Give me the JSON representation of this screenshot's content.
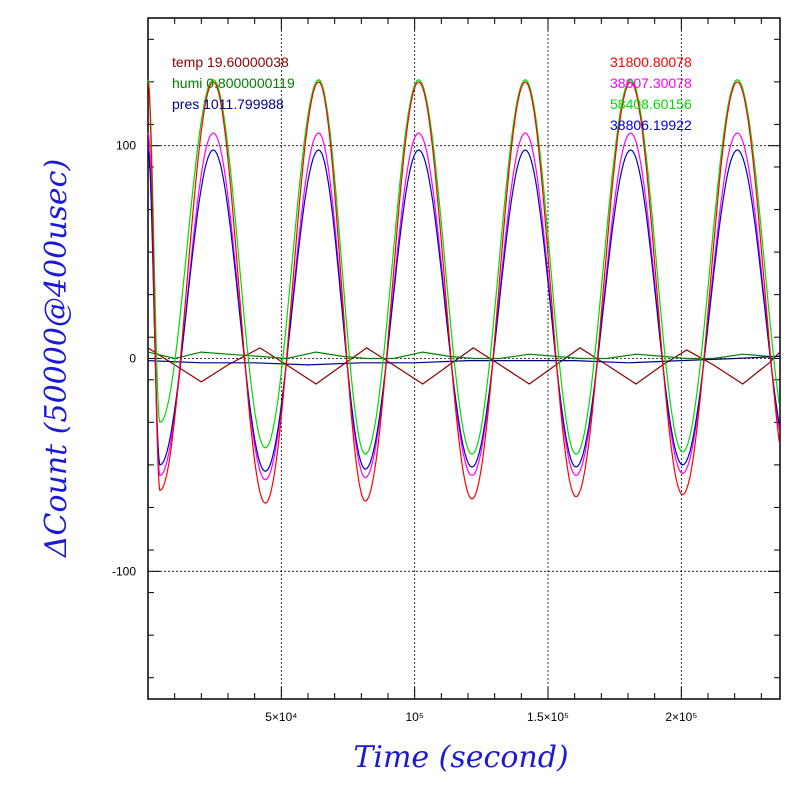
{
  "chart_data": {
    "type": "line",
    "xlabel": "Time (second)",
    "ylabel": "ΔCount (50000@400usec)",
    "xlim": [
      0,
      237000
    ],
    "ylim": [
      -160,
      160
    ],
    "x_ticks": [
      {
        "value": 50000,
        "label": "5×10⁴"
      },
      {
        "value": 100000,
        "label": "10⁵"
      },
      {
        "value": 150000,
        "label": "1.5×10⁵"
      },
      {
        "value": 200000,
        "label": "2×10⁵"
      }
    ],
    "y_ticks": [
      {
        "value": -100,
        "label": "-100"
      },
      {
        "value": 0,
        "label": "0"
      },
      {
        "value": 100,
        "label": "100"
      }
    ],
    "grid": true,
    "legend_left": [
      {
        "label": "temp 19.60000038",
        "color": "#8b0000"
      },
      {
        "label": "humi 0.8000000119",
        "color": "#008000"
      },
      {
        "label": "pres 1011.799988",
        "color": "#00008b"
      }
    ],
    "legend_right": [
      {
        "label": "31800.80078",
        "color": "#ff0000"
      },
      {
        "label": "38607.30078",
        "color": "#ff00ff"
      },
      {
        "label": "58408.60156",
        "color": "#00dd00"
      },
      {
        "label": "38806.19922",
        "color": "#0000cd"
      }
    ],
    "series": [
      {
        "name": "31800.80078",
        "color": "#ff0000",
        "peak_x": [
          24500,
          64000,
          101500,
          141500,
          181000,
          221000
        ],
        "peak_y": [
          130,
          130,
          130,
          130,
          130,
          130
        ],
        "trough_x": [
          4500,
          44000,
          81500,
          121500,
          160500,
          200500
        ],
        "trough_y": [
          -62,
          -68,
          -67,
          -66,
          -65,
          -64
        ]
      },
      {
        "name": "38607.30078",
        "color": "#ff00ff",
        "peak_x": [
          24500,
          64000,
          101500,
          141500,
          181000,
          221000
        ],
        "peak_y": [
          106,
          106,
          106,
          106,
          106,
          106
        ],
        "trough_x": [
          4500,
          44000,
          81500,
          121500,
          160500,
          200500
        ],
        "trough_y": [
          -55,
          -57,
          -56,
          -55,
          -55,
          -54
        ]
      },
      {
        "name": "58408.60156",
        "color": "#00dd00",
        "peak_x": [
          24500,
          64000,
          101500,
          141500,
          181000,
          221000
        ],
        "peak_y": [
          131,
          131,
          131,
          131,
          131,
          131
        ],
        "trough_x": [
          4500,
          44000,
          81500,
          121500,
          160500,
          200500
        ],
        "trough_y": [
          -30,
          -42,
          -45,
          -45,
          -45,
          -44
        ]
      },
      {
        "name": "38806.19922",
        "color": "#0000cd",
        "peak_x": [
          24500,
          64000,
          101500,
          141500,
          181000,
          221000
        ],
        "peak_y": [
          98,
          98,
          98,
          98,
          98,
          98
        ],
        "trough_x": [
          4500,
          44000,
          81500,
          121500,
          160500,
          200500
        ],
        "trough_y": [
          -50,
          -53,
          -52,
          -51,
          -51,
          -50
        ]
      },
      {
        "name": "temp",
        "color": "#8b0000",
        "x": [
          0,
          10000,
          20000,
          30000,
          42000,
          52000,
          63000,
          73000,
          82000,
          92000,
          103000,
          113000,
          122000,
          132000,
          143000,
          153000,
          162000,
          172000,
          183000,
          193000,
          202000,
          212000,
          223000,
          233000,
          237000
        ],
        "y": [
          5,
          -3,
          -11,
          -3,
          5,
          -3,
          -12,
          -3,
          5,
          -3,
          -12,
          -3,
          5,
          -3,
          -12,
          -3,
          5,
          -3,
          -12,
          -3,
          4,
          -3,
          -12,
          -2,
          3
        ]
      },
      {
        "name": "humi",
        "color": "#008000",
        "x": [
          0,
          10000,
          20000,
          30000,
          42000,
          52000,
          63000,
          73000,
          82000,
          92000,
          103000,
          113000,
          122000,
          132000,
          143000,
          153000,
          162000,
          172000,
          183000,
          193000,
          202000,
          212000,
          223000,
          233000,
          237000
        ],
        "y": [
          3,
          0,
          3,
          2,
          1,
          0,
          3,
          1,
          0,
          0,
          3,
          1,
          0,
          0,
          2,
          1,
          0,
          0,
          2,
          1,
          0,
          0,
          2,
          1,
          1
        ]
      },
      {
        "name": "pres",
        "color": "#00008b",
        "x": [
          0,
          20000,
          40000,
          60000,
          80000,
          100000,
          120000,
          140000,
          160000,
          180000,
          200000,
          220000,
          237000
        ],
        "y": [
          -1,
          -2,
          -2,
          -3,
          -2,
          -2,
          -1,
          -1,
          -1,
          -2,
          -1,
          0,
          1
        ]
      }
    ]
  }
}
